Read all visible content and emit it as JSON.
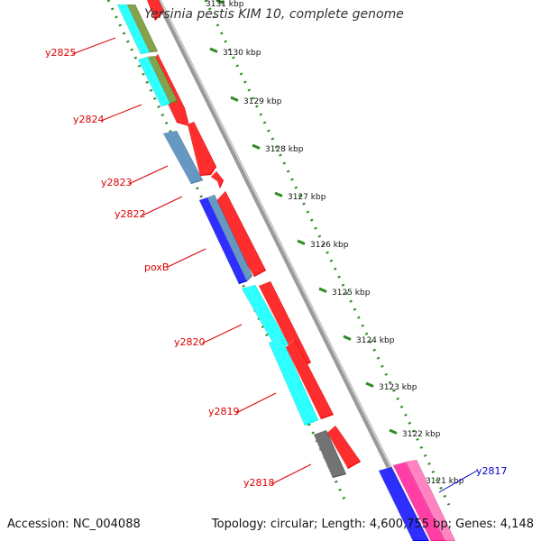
{
  "title": "Yersinia pestis KIM 10, complete genome",
  "footer": {
    "accession": "Accession: NC_004088",
    "info": "Topology: circular; Length: 4,600,755 bp; Genes: 4,148"
  },
  "colors": {
    "backbone": "#9a9a9a",
    "tick": "#2e8b22",
    "label_red": "#dd0000",
    "label_blue": "#0000cc",
    "red": "#ff0000",
    "cyan": "#00ffff",
    "olive": "#6b8e23",
    "steelblue": "#4682b4",
    "blue": "#0000ff",
    "gray": "#555555",
    "magenta": "#ff1493",
    "pink": "#ff69b4"
  },
  "ticks": [
    {
      "label": "3131 kbp"
    },
    {
      "label": "3130 kbp"
    },
    {
      "label": "3129 kbp"
    },
    {
      "label": "3128 kbp"
    },
    {
      "label": "3127 kbp"
    },
    {
      "label": "3126 kbp"
    },
    {
      "label": "3125 kbp"
    },
    {
      "label": "3124 kbp"
    },
    {
      "label": "3123 kbp"
    },
    {
      "label": "3122 kbp"
    },
    {
      "label": "3121 kbp"
    }
  ],
  "gene_labels": [
    {
      "text": "y2825",
      "color": "red"
    },
    {
      "text": "y2824",
      "color": "red"
    },
    {
      "text": "y2823",
      "color": "red"
    },
    {
      "text": "y2822",
      "color": "red"
    },
    {
      "text": "poxB",
      "color": "red"
    },
    {
      "text": "y2820",
      "color": "red"
    },
    {
      "text": "y2819",
      "color": "red"
    },
    {
      "text": "y2818",
      "color": "red"
    },
    {
      "text": "y2817",
      "color": "blue"
    }
  ],
  "features": [
    {
      "name": "red-1",
      "color": "red"
    },
    {
      "name": "red-2",
      "color": "red"
    },
    {
      "name": "red-3",
      "color": "red"
    },
    {
      "name": "red-4",
      "color": "red"
    },
    {
      "name": "red-5",
      "color": "red"
    },
    {
      "name": "red-6",
      "color": "red"
    },
    {
      "name": "red-7",
      "color": "red"
    },
    {
      "name": "red-8",
      "color": "red"
    },
    {
      "name": "cyan-1",
      "color": "cyan"
    },
    {
      "name": "olive-1",
      "color": "olive"
    },
    {
      "name": "cyan-2",
      "color": "cyan"
    },
    {
      "name": "olive-2",
      "color": "olive"
    },
    {
      "name": "steel-1",
      "color": "steelblue"
    },
    {
      "name": "blue-1",
      "color": "blue"
    },
    {
      "name": "steel-2",
      "color": "steelblue"
    },
    {
      "name": "cyan-3",
      "color": "cyan"
    },
    {
      "name": "cyan-4",
      "color": "cyan"
    },
    {
      "name": "gray-1",
      "color": "gray"
    },
    {
      "name": "blue-2",
      "color": "blue"
    },
    {
      "name": "magenta-1",
      "color": "magenta"
    },
    {
      "name": "pink-1",
      "color": "pink"
    }
  ]
}
